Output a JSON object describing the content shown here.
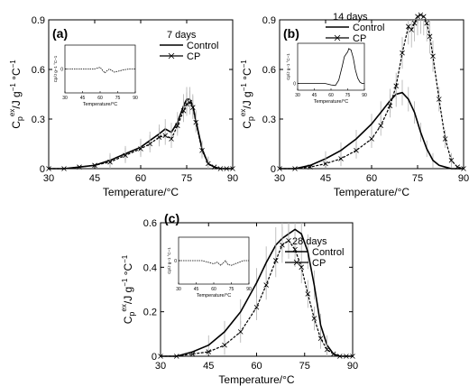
{
  "figure": {
    "shared_xlabel": "Temperature/°C",
    "shared_ylabel_main": "C",
    "shared_ylabel_sub": "p",
    "shared_ylabel_sup": "ex",
    "shared_ylabel_units": "/J g",
    "shared_ylabel_units2": " °C",
    "shared_ylabel_sup2": "−1",
    "shared_ylabel_sup3": "−1",
    "inset_xlabel": "Temperature/°C"
  },
  "chart_data": [
    {
      "type": "line",
      "panel_label": "(a)",
      "legend_title": "7 days",
      "xlabel": "Temperature/°C",
      "ylabel": "Cp ex /J g−1 °C−1",
      "xlim": [
        30,
        90
      ],
      "ylim": [
        0.0,
        0.9
      ],
      "x_ticks": [
        30,
        45,
        60,
        75,
        90
      ],
      "y_ticks": [
        0.0,
        0.3,
        0.6,
        0.9
      ],
      "legend_position": "top-right",
      "series": [
        {
          "name": "Control",
          "color": "#000000",
          "marker": "none",
          "x": [
            30,
            35,
            40,
            45,
            50,
            55,
            60,
            63,
            66,
            68,
            70,
            72,
            74,
            75,
            76,
            77,
            78,
            80,
            82,
            84,
            86,
            88,
            90
          ],
          "y": [
            0.0,
            0.0,
            0.01,
            0.02,
            0.05,
            0.09,
            0.13,
            0.17,
            0.21,
            0.24,
            0.22,
            0.28,
            0.38,
            0.42,
            0.42,
            0.38,
            0.29,
            0.12,
            0.03,
            0.01,
            0.0,
            0.0,
            0.0
          ]
        },
        {
          "name": "CP",
          "color": "#000000",
          "marker": "x",
          "x": [
            30,
            35,
            40,
            45,
            50,
            55,
            60,
            63,
            66,
            68,
            70,
            72,
            74,
            75,
            76,
            77,
            78,
            80,
            82,
            84,
            86,
            88,
            90
          ],
          "y": [
            0.0,
            0.0,
            0.01,
            0.02,
            0.04,
            0.08,
            0.12,
            0.15,
            0.19,
            0.2,
            0.18,
            0.26,
            0.35,
            0.39,
            0.4,
            0.37,
            0.28,
            0.11,
            0.03,
            0.01,
            0.0,
            0.0,
            0.0
          ]
        }
      ],
      "inset": {
        "ylabel": "Cp/J g−1 °C−1",
        "xlabel": "Temperature/°C",
        "xlim": [
          30,
          90
        ],
        "x_ticks": [
          30,
          45,
          60,
          75,
          90
        ],
        "ylim": [
          -0.3,
          0.3
        ],
        "y_ticks": [
          0.0
        ],
        "x": [
          30,
          40,
          50,
          55,
          60,
          64,
          66,
          68,
          70,
          72,
          75,
          80,
          85,
          90
        ],
        "y": [
          0.0,
          0.0,
          0.0,
          0.0,
          0.02,
          -0.05,
          -0.02,
          0.0,
          -0.02,
          -0.04,
          -0.03,
          -0.01,
          0.0,
          0.0
        ]
      }
    },
    {
      "type": "line",
      "panel_label": "(b)",
      "legend_title": "14 days",
      "xlabel": "Temperature/°C",
      "ylabel": "Cp ex /J g−1 °C−1",
      "xlim": [
        30,
        90
      ],
      "ylim": [
        0.0,
        0.9
      ],
      "x_ticks": [
        30,
        45,
        60,
        75,
        90
      ],
      "y_ticks": [
        0.0,
        0.3,
        0.6,
        0.9
      ],
      "legend_position": "top-center",
      "series": [
        {
          "name": "Control",
          "color": "#000000",
          "marker": "none",
          "x": [
            30,
            35,
            40,
            45,
            50,
            55,
            60,
            63,
            66,
            68,
            70,
            72,
            74,
            76,
            78,
            80,
            82,
            84,
            86,
            88,
            90
          ],
          "y": [
            0.0,
            0.0,
            0.02,
            0.06,
            0.11,
            0.18,
            0.27,
            0.34,
            0.41,
            0.45,
            0.46,
            0.42,
            0.34,
            0.22,
            0.12,
            0.05,
            0.02,
            0.01,
            0.0,
            0.0,
            0.0
          ]
        },
        {
          "name": "CP",
          "color": "#000000",
          "marker": "x",
          "x": [
            30,
            35,
            40,
            45,
            50,
            55,
            60,
            63,
            66,
            68,
            70,
            72,
            73,
            74,
            75,
            76,
            77,
            78,
            79,
            80,
            82,
            84,
            86,
            88,
            90
          ],
          "y": [
            0.0,
            0.0,
            0.01,
            0.03,
            0.06,
            0.11,
            0.18,
            0.26,
            0.38,
            0.5,
            0.7,
            0.86,
            0.84,
            0.88,
            0.92,
            0.93,
            0.92,
            0.88,
            0.8,
            0.68,
            0.42,
            0.18,
            0.05,
            0.01,
            0.0
          ]
        }
      ],
      "inset": {
        "ylabel": "Cp/J g−1 °C−1",
        "xlabel": "Temperature/°C",
        "xlim": [
          30,
          90
        ],
        "x_ticks": [
          30,
          45,
          60,
          75,
          90
        ],
        "ylim": [
          -0.1,
          0.6
        ],
        "y_ticks": [
          0.0
        ],
        "x": [
          30,
          40,
          50,
          55,
          60,
          64,
          67,
          70,
          72,
          74,
          75,
          76,
          78,
          80,
          82,
          84,
          86,
          88,
          90
        ],
        "y": [
          0.0,
          0.0,
          0.0,
          0.0,
          -0.02,
          -0.03,
          0.05,
          0.25,
          0.4,
          0.45,
          0.47,
          0.52,
          0.5,
          0.38,
          0.2,
          0.08,
          0.02,
          0.0,
          0.0
        ]
      }
    },
    {
      "type": "line",
      "panel_label": "(c)",
      "legend_title": "28 days",
      "xlabel": "Temperature/°C",
      "ylabel": "Cp ex /J g−1 °C−1",
      "xlim": [
        30,
        90
      ],
      "ylim": [
        0.0,
        0.6
      ],
      "x_ticks": [
        30,
        45,
        60,
        75,
        90
      ],
      "y_ticks": [
        0.0,
        0.2,
        0.4,
        0.6
      ],
      "legend_position": "top-right",
      "series": [
        {
          "name": "Control",
          "color": "#000000",
          "marker": "none",
          "x": [
            30,
            35,
            40,
            45,
            50,
            55,
            60,
            63,
            66,
            68,
            70,
            72,
            74,
            76,
            78,
            80,
            82,
            84,
            86,
            88,
            90
          ],
          "y": [
            0.0,
            0.0,
            0.02,
            0.05,
            0.11,
            0.2,
            0.33,
            0.42,
            0.5,
            0.53,
            0.55,
            0.57,
            0.55,
            0.47,
            0.32,
            0.14,
            0.05,
            0.01,
            0.0,
            0.0,
            0.0
          ]
        },
        {
          "name": "CP",
          "color": "#000000",
          "marker": "x",
          "x": [
            30,
            35,
            40,
            45,
            50,
            55,
            60,
            63,
            66,
            68,
            70,
            72,
            74,
            76,
            78,
            80,
            82,
            84,
            86,
            88,
            90
          ],
          "y": [
            0.0,
            0.0,
            0.01,
            0.02,
            0.05,
            0.11,
            0.22,
            0.32,
            0.43,
            0.5,
            0.52,
            0.48,
            0.4,
            0.28,
            0.17,
            0.08,
            0.03,
            0.01,
            0.0,
            0.0,
            0.0
          ]
        }
      ],
      "inset": {
        "ylabel": "Cp/J g−1 °C−1",
        "xlabel": "Temperature/°C",
        "xlim": [
          30,
          90
        ],
        "x_ticks": [
          30,
          45,
          60,
          75,
          90
        ],
        "ylim": [
          -0.3,
          0.3
        ],
        "y_ticks": [
          0.0
        ],
        "x": [
          30,
          40,
          50,
          55,
          60,
          63,
          66,
          68,
          70,
          72,
          75,
          80,
          85,
          90
        ],
        "y": [
          0.0,
          0.0,
          0.0,
          -0.02,
          -0.04,
          -0.02,
          -0.06,
          -0.03,
          0.0,
          -0.05,
          -0.06,
          -0.03,
          0.0,
          0.0
        ]
      }
    }
  ]
}
